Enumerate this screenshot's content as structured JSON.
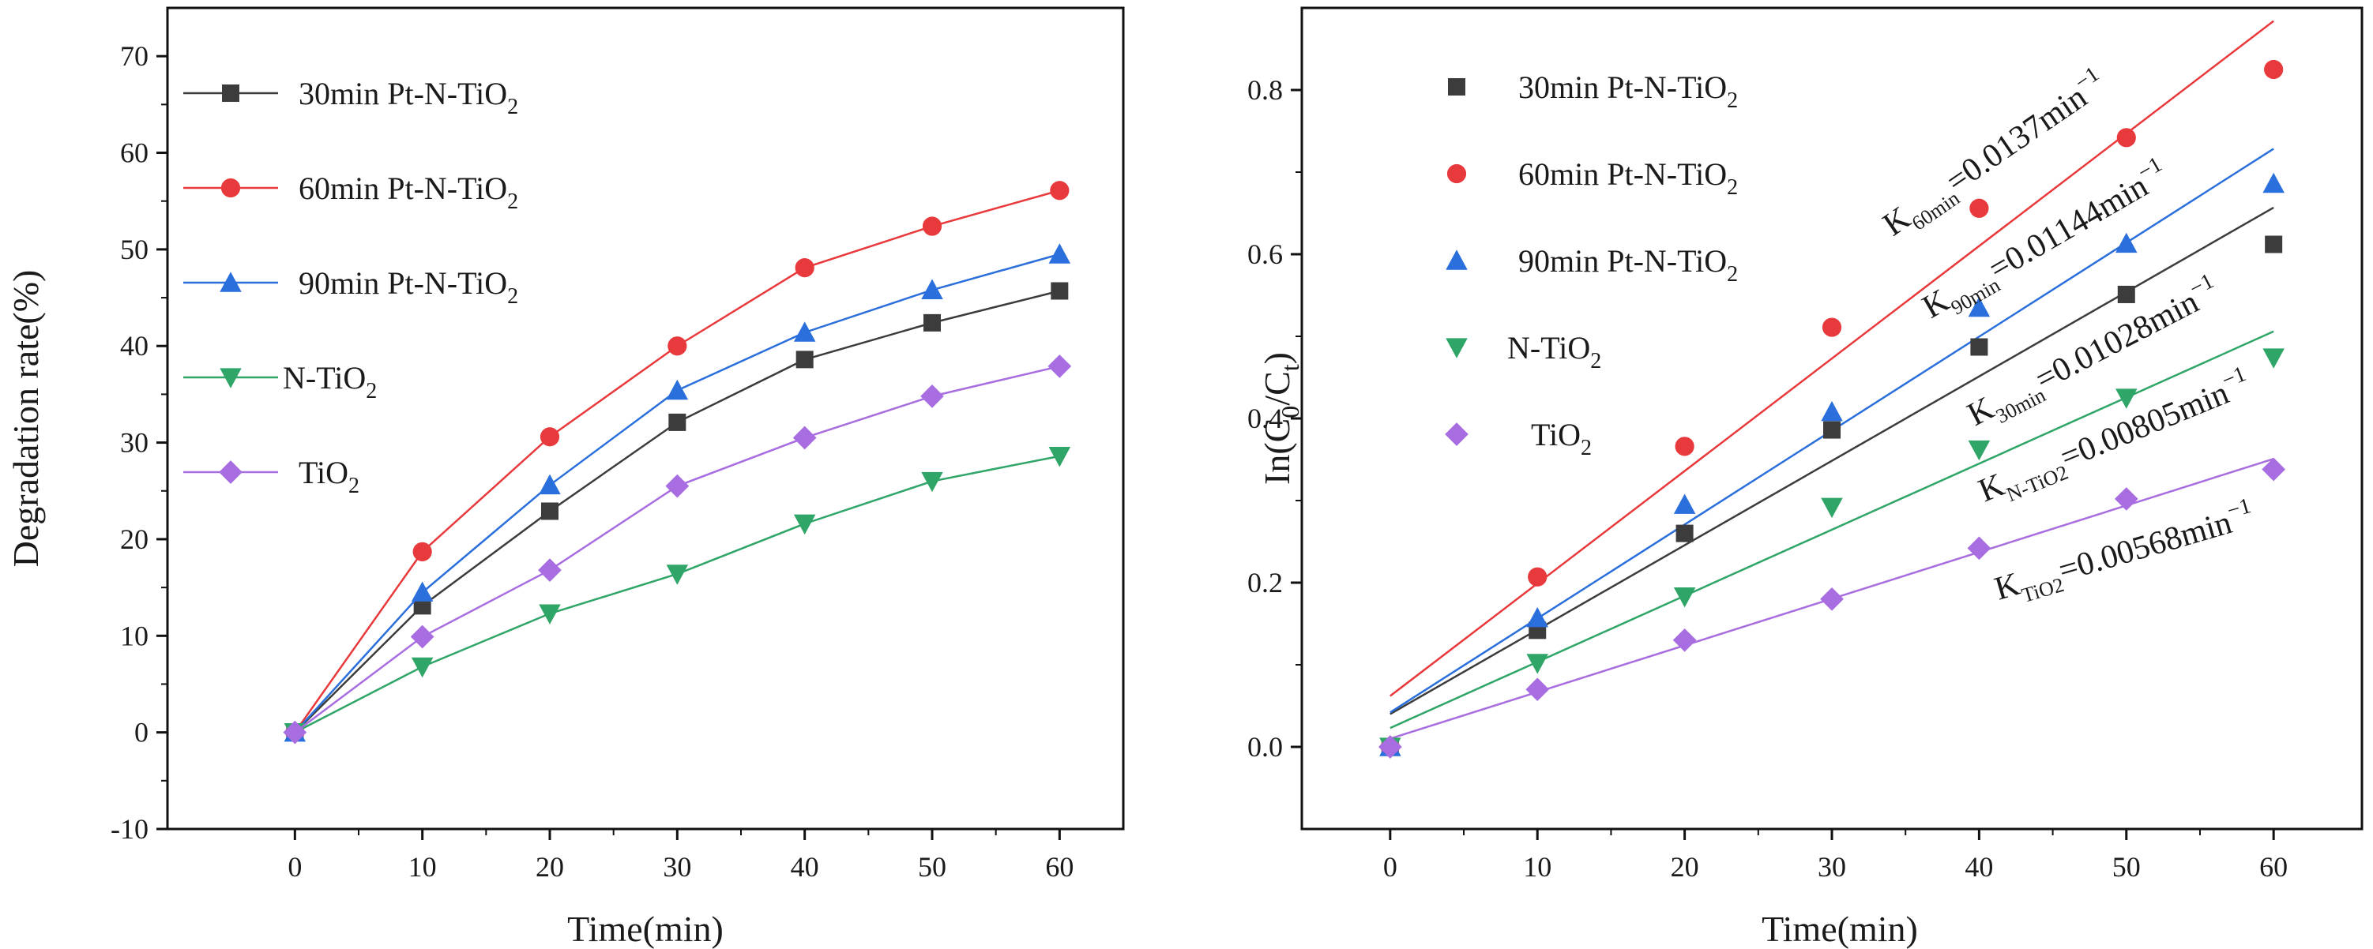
{
  "chart_data": [
    {
      "type": "line",
      "title": "",
      "xlabel": "Time(min)",
      "ylabel": "Degradation rate(%)",
      "xlim": [
        -10,
        65
      ],
      "ylim": [
        -10,
        75
      ],
      "xticks": [
        0,
        10,
        20,
        30,
        40,
        50,
        60
      ],
      "yticks": [
        -10,
        0,
        10,
        20,
        30,
        40,
        50,
        60,
        70
      ],
      "x": [
        0,
        10,
        20,
        30,
        40,
        50,
        60
      ],
      "legend_position": "top-left",
      "series": [
        {
          "name": "30min Pt-N-TiO2",
          "label_main": "30min Pt-N-TiO",
          "label_sub": "2",
          "color": "#3c3c3c",
          "marker": "square",
          "values": [
            0,
            13.1,
            22.9,
            32.1,
            38.6,
            42.4,
            45.7
          ]
        },
        {
          "name": "60min Pt-N-TiO2",
          "label_main": "60min Pt-N-TiO",
          "label_sub": "2",
          "color": "#e8393c",
          "marker": "circle",
          "values": [
            0,
            18.7,
            30.6,
            40.0,
            48.1,
            52.4,
            56.1
          ]
        },
        {
          "name": "90min Pt-N-TiO2",
          "label_main": "90min Pt-N-TiO",
          "label_sub": "2",
          "color": "#2a6fdb",
          "marker": "triangle-up",
          "values": [
            0,
            14.5,
            25.6,
            35.4,
            41.4,
            45.8,
            49.5
          ]
        },
        {
          "name": "N-TiO2",
          "label_main": "N-TiO",
          "label_sub": "2",
          "color": "#2fa567",
          "marker": "triangle-down",
          "values": [
            0,
            6.8,
            12.3,
            16.4,
            21.6,
            26.0,
            28.6
          ]
        },
        {
          "name": "TiO2",
          "label_main": "TiO",
          "label_sub": "2",
          "color": "#a86de0",
          "marker": "diamond",
          "values": [
            0,
            9.9,
            16.8,
            25.5,
            30.5,
            34.8,
            37.9
          ]
        }
      ]
    },
    {
      "type": "scatter",
      "title": "",
      "xlabel": "Time(min)",
      "ylabel_main": "In(C",
      "ylabel_sub0": "0",
      "ylabel_mid": "/C",
      "ylabel_sub1": "t",
      "ylabel_end": ")",
      "xlim": [
        -6,
        66
      ],
      "ylim": [
        -0.1,
        0.9
      ],
      "xticks": [
        0,
        10,
        20,
        30,
        40,
        50,
        60
      ],
      "yticks": [
        "0.0",
        "0.2",
        "0.4",
        "0.6",
        "0.8"
      ],
      "ytick_values": [
        0,
        0.2,
        0.4,
        0.6,
        0.8
      ],
      "x": [
        0,
        10,
        20,
        30,
        40,
        50,
        60
      ],
      "legend_position": "top-left",
      "series": [
        {
          "name": "30min Pt-N-TiO2",
          "label_main": "30min Pt-N-TiO",
          "label_sub": "2",
          "color": "#3c3c3c",
          "marker": "square",
          "values": [
            0,
            0.142,
            0.26,
            0.386,
            0.487,
            0.551,
            0.612
          ],
          "fit": {
            "intercept": 0.04,
            "slope": 0.01028
          },
          "k_label": {
            "k": "K",
            "sub": "30min",
            "rest": "=0.01028min",
            "sup": "−1"
          }
        },
        {
          "name": "60min Pt-N-TiO2",
          "label_main": "60min Pt-N-TiO",
          "label_sub": "2",
          "color": "#e8393c",
          "marker": "circle",
          "values": [
            0,
            0.207,
            0.366,
            0.511,
            0.656,
            0.742,
            0.825
          ],
          "fit": {
            "intercept": 0.062,
            "slope": 0.0137
          },
          "k_label": {
            "k": "K",
            "sub": "60min",
            "rest": "=0.0137min",
            "sup": "−1"
          }
        },
        {
          "name": "90min Pt-N-TiO2",
          "label_main": "90min Pt-N-TiO",
          "label_sub": "2",
          "color": "#2a6fdb",
          "marker": "triangle-up",
          "values": [
            0,
            0.157,
            0.295,
            0.408,
            0.535,
            0.613,
            0.686
          ],
          "fit": {
            "intercept": 0.042,
            "slope": 0.01144
          },
          "k_label": {
            "k": "K",
            "sub": "90min",
            "rest": "=0.01144min",
            "sup": "−1"
          }
        },
        {
          "name": "N-TiO2",
          "label_main": "N-TiO",
          "label_sub": "2",
          "color": "#2fa567",
          "marker": "triangle-down",
          "values": [
            0,
            0.102,
            0.183,
            0.292,
            0.362,
            0.425,
            0.474
          ],
          "fit": {
            "intercept": 0.023,
            "slope": 0.00805
          },
          "k_label": {
            "k": "K",
            "sub": "N-TiO2",
            "rest": "=0.00805min",
            "sup": "−1"
          }
        },
        {
          "name": "TiO2",
          "label_main": "TiO",
          "label_sub": "2",
          "color": "#a86de0",
          "marker": "diamond",
          "values": [
            0,
            0.07,
            0.13,
            0.18,
            0.242,
            0.302,
            0.338
          ],
          "fit": {
            "intercept": 0.01,
            "slope": 0.00568
          },
          "k_label": {
            "k": "K",
            "sub": "TiO2",
            "rest": "=0.00568min",
            "sup": "−1"
          }
        }
      ]
    }
  ]
}
